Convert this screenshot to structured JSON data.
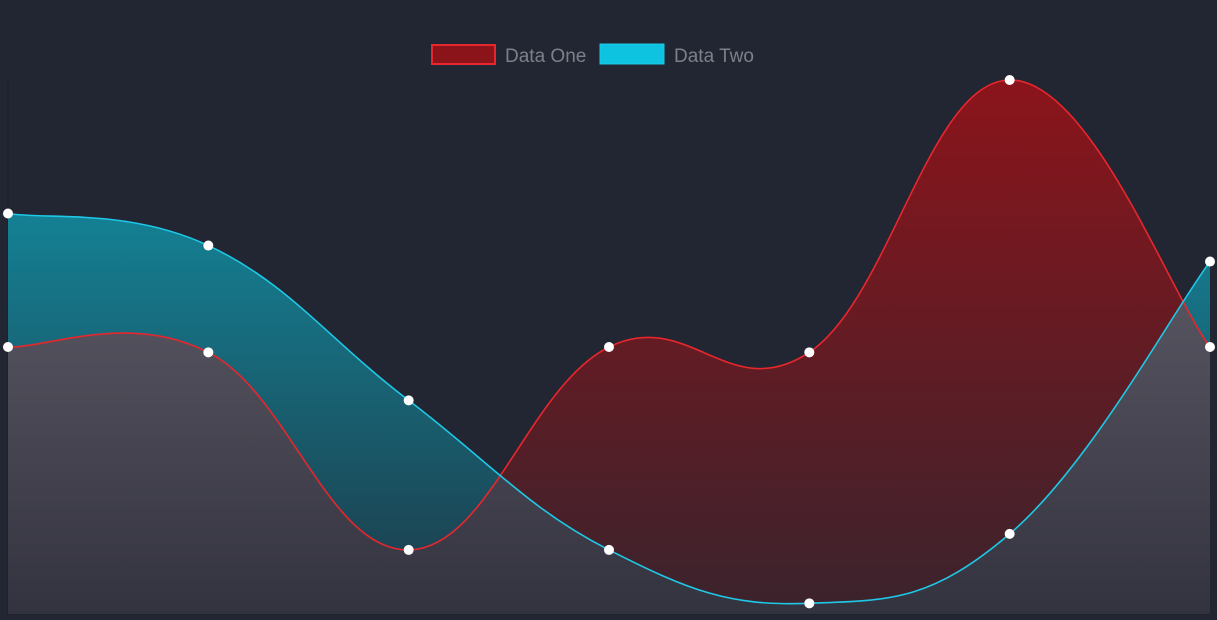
{
  "chart_data": {
    "type": "area",
    "smooth": true,
    "title": "",
    "xlabel": "",
    "ylabel": "",
    "x": [
      0,
      1,
      2,
      3,
      4,
      5,
      6
    ],
    "ylim": [
      0,
      100
    ],
    "grid": false,
    "legend_position": "top-center",
    "series": [
      {
        "name": "Data One",
        "values": [
          50,
          49,
          12,
          50,
          49,
          100,
          50
        ],
        "color": "#e8262d",
        "fill_top": "#8b141b",
        "fill_bottom": "#3a232d"
      },
      {
        "name": "Data Two",
        "values": [
          75,
          69,
          40,
          12,
          2,
          15,
          66
        ],
        "color": "#1ec8e6",
        "fill_top": "#1198ad",
        "fill_bottom": "#1d3a48"
      }
    ]
  },
  "background_color": "#212632",
  "point_color": "#ffffff"
}
